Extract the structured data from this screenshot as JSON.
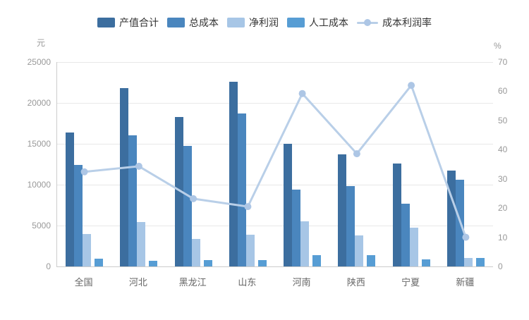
{
  "chart_data": {
    "type": "combo",
    "title": "",
    "categories": [
      "全国",
      "河北",
      "黑龙江",
      "山东",
      "河南",
      "陕西",
      "宁夏",
      "新疆"
    ],
    "left_axis": {
      "unit": "元",
      "min": 0,
      "max": 25000,
      "ticks": [
        0,
        5000,
        10000,
        15000,
        20000,
        25000
      ]
    },
    "right_axis": {
      "unit": "%",
      "min": 0,
      "max": 70,
      "ticks": [
        0,
        10,
        20,
        30,
        40,
        50,
        60,
        70
      ]
    },
    "legend_position": "top",
    "grid": true,
    "series": [
      {
        "name": "产值合计",
        "type": "bar",
        "axis": "left",
        "color": "#3c6e9f",
        "values": [
          16400,
          21800,
          18300,
          22600,
          15000,
          13700,
          12600,
          11700
        ]
      },
      {
        "name": "总成本",
        "type": "bar",
        "axis": "left",
        "color": "#4a86be",
        "values": [
          12400,
          16000,
          14700,
          18700,
          9400,
          9800,
          7700,
          10600
        ]
      },
      {
        "name": "净利润",
        "type": "bar",
        "axis": "left",
        "color": "#a7c6e6",
        "values": [
          4000,
          5400,
          3400,
          3850,
          5550,
          3800,
          4750,
          1050
        ]
      },
      {
        "name": "人工成本",
        "type": "bar",
        "axis": "left",
        "color": "#579dd4",
        "values": [
          950,
          650,
          800,
          750,
          1400,
          1400,
          900,
          1050
        ]
      },
      {
        "name": "成本利润率",
        "type": "line",
        "axis": "right",
        "color": "#b9cfe8",
        "dot_color": "#adc6e5",
        "values": [
          32.4,
          34.3,
          23.2,
          20.5,
          59.2,
          38.6,
          62.0,
          10.0
        ]
      }
    ]
  },
  "colors": {
    "background": "#ffffff",
    "gridline": "#e8e8e8",
    "axis_line": "#cccccc",
    "tick_text": "#999999",
    "category_text": "#666666",
    "legend_text": "#333333"
  }
}
